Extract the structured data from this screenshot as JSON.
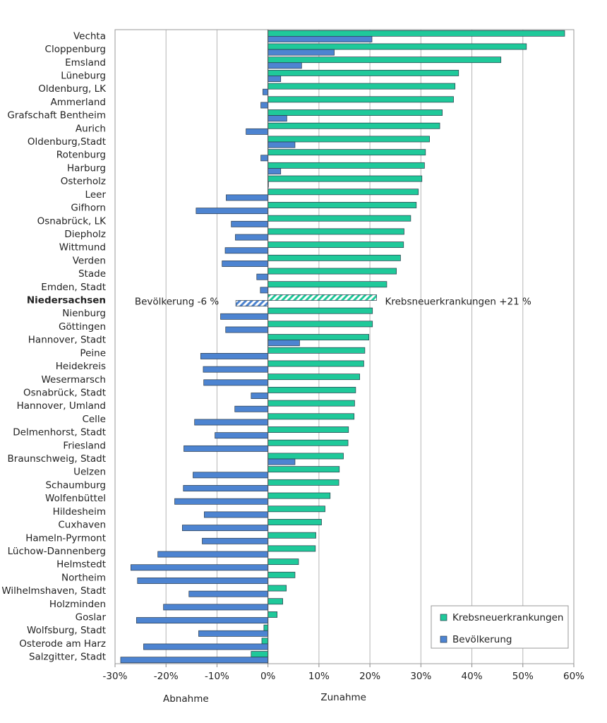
{
  "chart_data": {
    "type": "hbar",
    "categories": [
      "Vechta",
      "Cloppenburg",
      "Emsland",
      "Lüneburg",
      "Oldenburg, LK",
      "Ammerland",
      "Grafschaft Bentheim",
      "Aurich",
      "Oldenburg,Stadt",
      "Rotenburg",
      "Harburg",
      "Osterholz",
      "Leer",
      "Gifhorn",
      "Osnabrück, LK",
      "Diepholz",
      "Wittmund",
      "Verden",
      "Stade",
      "Emden, Stadt",
      "Niedersachsen",
      "Nienburg",
      "Göttingen",
      "Hannover, Stadt",
      "Peine",
      "Heidekreis",
      "Wesermarsch",
      "Osnabrück, Stadt",
      "Hannover, Umland",
      "Celle",
      "Delmenhorst, Stadt",
      "Friesland",
      "Braunschweig, Stadt",
      "Uelzen",
      "Schaumburg",
      "Wolfenbüttel",
      "Hildesheim",
      "Cuxhaven",
      "Hameln-Pyrmont",
      "Lüchow-Dannenberg",
      "Helmstedt",
      "Northeim",
      "Wilhelmshaven, Stadt",
      "Holzminden",
      "Goslar",
      "Wolfsburg, Stadt",
      "Osterode am Harz",
      "Salzgitter, Stadt"
    ],
    "series": [
      {
        "name": "Krebsneuerkrankungen",
        "color": "#1fc99a",
        "values": [
          58.2,
          50.7,
          45.7,
          37.4,
          36.7,
          36.4,
          34.2,
          33.7,
          31.7,
          30.9,
          30.7,
          30.2,
          29.5,
          29.1,
          28.0,
          26.7,
          26.6,
          26.0,
          25.2,
          23.3,
          21.3,
          20.5,
          20.5,
          19.8,
          19.0,
          18.8,
          18.0,
          17.2,
          17.0,
          16.9,
          15.8,
          15.7,
          14.8,
          14.0,
          13.9,
          12.2,
          11.2,
          10.5,
          9.4,
          9.3,
          6.0,
          5.3,
          3.6,
          2.9,
          1.8,
          -0.8,
          -1.2,
          -3.3
        ]
      },
      {
        "name": "Bevölkerung",
        "color": "#4d84d1",
        "values": [
          20.4,
          13.0,
          6.6,
          2.5,
          -1.0,
          -1.4,
          3.7,
          -4.3,
          5.3,
          -1.4,
          2.5,
          0.1,
          -8.2,
          -14.1,
          -7.2,
          -6.4,
          -8.4,
          -9.0,
          -2.2,
          -1.5,
          -6.3,
          -9.3,
          -8.3,
          6.2,
          -13.2,
          -12.7,
          -12.6,
          -3.3,
          -6.5,
          -14.4,
          -10.4,
          -16.5,
          5.3,
          -14.7,
          -16.6,
          -18.3,
          -12.5,
          -16.8,
          -12.9,
          -21.6,
          -26.9,
          -25.6,
          -15.5,
          -20.5,
          -25.8,
          -13.6,
          -24.4,
          -28.9
        ]
      }
    ],
    "highlight": 20,
    "annotations": [
      "Bevölkerung  -6 %",
      "Krebsneuerkrankungen  +21 %"
    ],
    "xlabels": [
      "Abnahme",
      "Zunahme"
    ],
    "xlim": [
      -30,
      60
    ],
    "xticks": [
      {
        "value": -30,
        "label": "-30%"
      },
      {
        "value": -20,
        "label": "-20%"
      },
      {
        "value": -10,
        "label": "-10%"
      },
      {
        "value": 0,
        "label": "0%"
      },
      {
        "value": 10,
        "label": "10%"
      },
      {
        "value": 20,
        "label": "20%"
      },
      {
        "value": 30,
        "label": "30%"
      },
      {
        "value": 40,
        "label": "40%"
      },
      {
        "value": 50,
        "label": "50%"
      },
      {
        "value": 60,
        "label": "60%"
      }
    ],
    "grid": true,
    "legend": "lower-right"
  }
}
